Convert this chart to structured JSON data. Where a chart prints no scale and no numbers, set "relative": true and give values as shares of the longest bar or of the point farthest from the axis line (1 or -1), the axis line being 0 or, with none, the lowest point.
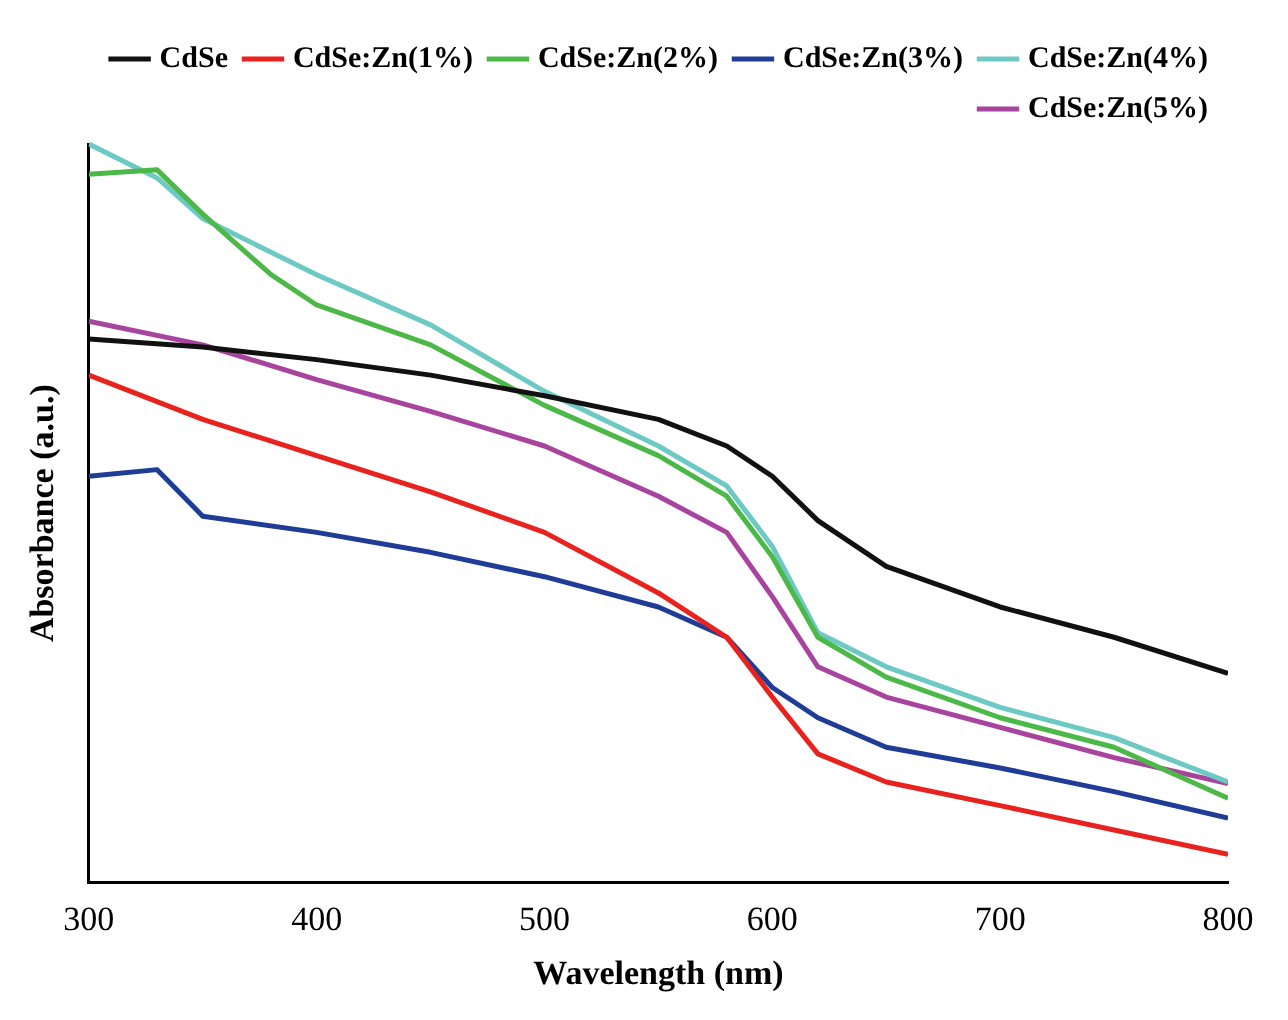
{
  "chart_data": {
    "type": "line",
    "relative": true,
    "xlabel": "Wavelength (nm)",
    "ylabel": "Absorbance (a.u.)",
    "xlim": [
      300,
      800
    ],
    "xticks": [
      300,
      400,
      500,
      600,
      700,
      800
    ],
    "legend": "top right",
    "marker": "none",
    "line_style": "solid",
    "grid": false,
    "series": [
      {
        "name": "CdSe",
        "color": "#111111",
        "x": [
          300,
          350,
          400,
          450,
          500,
          550,
          580,
          600,
          620,
          650,
          700,
          750,
          800
        ],
        "values": [
          0.736,
          0.725,
          0.708,
          0.687,
          0.659,
          0.627,
          0.591,
          0.55,
          0.49,
          0.428,
          0.373,
          0.332,
          0.283
        ]
      },
      {
        "name": "CdSe:Zn(1%)",
        "color": "#e8231f",
        "x": [
          300,
          350,
          400,
          450,
          500,
          550,
          580,
          600,
          620,
          650,
          700,
          750,
          800
        ],
        "values": [
          0.687,
          0.627,
          0.578,
          0.529,
          0.474,
          0.392,
          0.332,
          0.251,
          0.174,
          0.136,
          0.104,
          0.071,
          0.038
        ]
      },
      {
        "name": "CdSe:Zn(2%)",
        "color": "#4cb848",
        "x": [
          300,
          330,
          350,
          380,
          400,
          450,
          500,
          550,
          580,
          600,
          620,
          650,
          700,
          750,
          800
        ],
        "values": [
          0.959,
          0.965,
          0.905,
          0.823,
          0.782,
          0.728,
          0.646,
          0.578,
          0.523,
          0.441,
          0.332,
          0.278,
          0.223,
          0.183,
          0.114
        ]
      },
      {
        "name": "CdSe:Zn(3%)",
        "color": "#1f3c96",
        "x": [
          300,
          330,
          350,
          400,
          450,
          500,
          550,
          580,
          600,
          620,
          650,
          700,
          750,
          800
        ],
        "values": [
          0.55,
          0.559,
          0.496,
          0.474,
          0.447,
          0.414,
          0.373,
          0.332,
          0.264,
          0.223,
          0.183,
          0.155,
          0.123,
          0.087
        ]
      },
      {
        "name": "CdSe:Zn(4%)",
        "color": "#6cc9c3",
        "x": [
          300,
          330,
          350,
          400,
          450,
          500,
          550,
          580,
          600,
          620,
          650,
          700,
          750,
          800
        ],
        "values": [
          1,
          0.954,
          0.899,
          0.823,
          0.755,
          0.665,
          0.591,
          0.537,
          0.455,
          0.338,
          0.292,
          0.237,
          0.196,
          0.136
        ]
      },
      {
        "name": "CdSe:Zn(5%)",
        "color": "#a8449e",
        "x": [
          300,
          350,
          400,
          450,
          500,
          550,
          580,
          600,
          620,
          650,
          700,
          750,
          800
        ],
        "values": [
          0.76,
          0.728,
          0.681,
          0.638,
          0.591,
          0.523,
          0.474,
          0.387,
          0.292,
          0.251,
          0.21,
          0.169,
          0.134
        ]
      }
    ]
  }
}
